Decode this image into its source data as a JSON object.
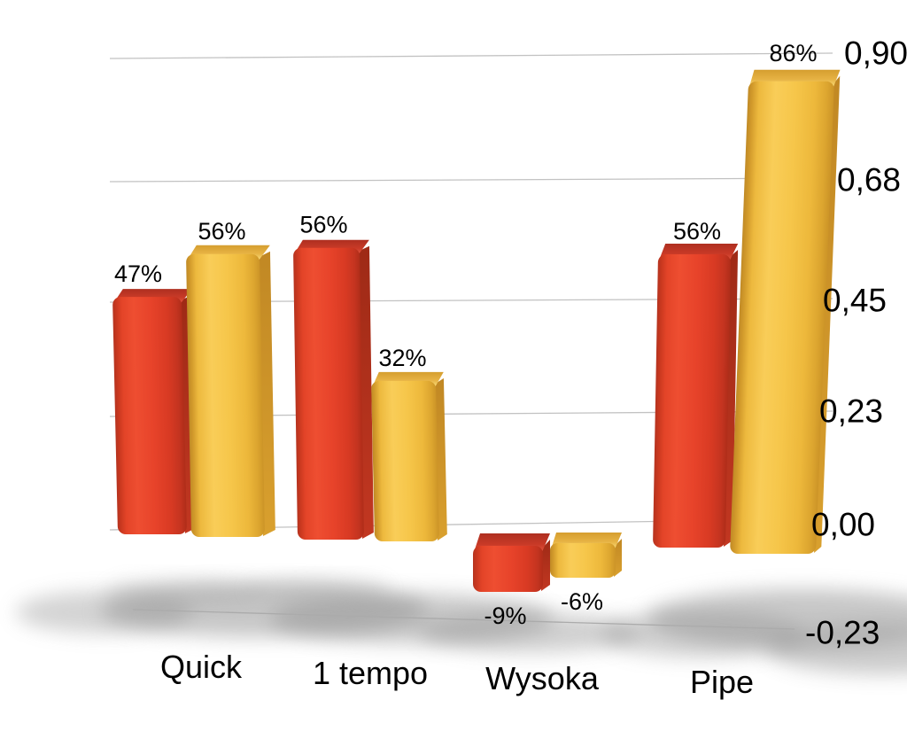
{
  "page": {
    "background": "#ffffff"
  },
  "chart_data": {
    "type": "bar",
    "style": "3d-perspective-columns",
    "categories": [
      "Quick",
      "1 tempo",
      "Wysoka",
      "Pipe"
    ],
    "series": [
      {
        "name": "red",
        "color": "#E8432A",
        "values": [
          0.47,
          0.56,
          -0.09,
          0.56
        ],
        "data_labels": [
          "47%",
          "56%",
          "-9%",
          "56%"
        ]
      },
      {
        "name": "yellow",
        "color": "#F6C74B",
        "values": [
          0.56,
          0.32,
          -0.06,
          0.86
        ],
        "data_labels": [
          "56%",
          "32%",
          "-6%",
          "86%"
        ]
      }
    ],
    "value_axis": {
      "side": "right",
      "min": -0.23,
      "max": 0.9,
      "tick_values": [
        0.9,
        0.68,
        0.45,
        0.23,
        0.0,
        -0.23
      ],
      "tick_labels": [
        "0,90",
        "0,68",
        "0,45",
        "0,23",
        "0,00",
        "-0,23"
      ],
      "decimal_separator": ",",
      "gridlines": "on"
    },
    "category_axis": {
      "side": "bottom",
      "labels": [
        "Quick",
        "1 tempo",
        "Wysoka",
        "Pipe"
      ]
    },
    "legend": "none",
    "title": "",
    "colors": {
      "red_series": "#E8432A",
      "yellow_series": "#F6C74B",
      "gridline": "#C2C2C2",
      "label_text": "#000000",
      "floor_shadow": "#8F8F8F"
    }
  }
}
